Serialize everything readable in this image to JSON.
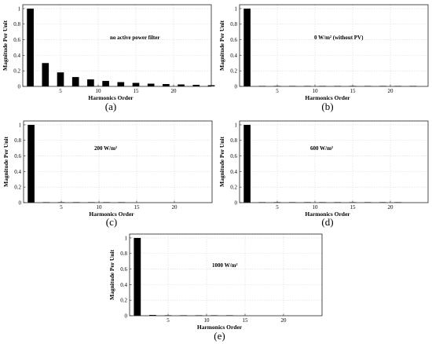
{
  "chart_data": [
    {
      "type": "bar",
      "panel_label": "(a)",
      "annotation": "no active power filter",
      "xlabel": "Harmonics Order",
      "ylabel": "Magnitude Per Unit",
      "xlim": [
        0,
        25
      ],
      "ylim": [
        0,
        1.05
      ],
      "xticks": [
        5,
        10,
        15,
        20
      ],
      "yticks": [
        0,
        0.2,
        0.4,
        0.6,
        0.8,
        1
      ],
      "x": [
        1,
        3,
        5,
        7,
        9,
        11,
        13,
        15,
        17,
        19,
        21,
        23,
        25
      ],
      "values": [
        1.0,
        0.3,
        0.18,
        0.12,
        0.09,
        0.07,
        0.055,
        0.045,
        0.035,
        0.03,
        0.025,
        0.02,
        0.015
      ]
    },
    {
      "type": "bar",
      "panel_label": "(b)",
      "annotation": "0 W/m² (without PV)",
      "xlabel": "Harmonics Order",
      "ylabel": "Magnitude Per Unit",
      "xlim": [
        0,
        25
      ],
      "ylim": [
        0,
        1.05
      ],
      "xticks": [
        5,
        10,
        15,
        20
      ],
      "yticks": [
        0,
        0.2,
        0.4,
        0.6,
        0.8,
        1
      ],
      "x": [
        1,
        3,
        5,
        7,
        9,
        11,
        13,
        15,
        17,
        19,
        21,
        23
      ],
      "values": [
        1.0,
        0.003,
        0.002,
        0.002,
        0.002,
        0.002,
        0.002,
        0.002,
        0.002,
        0.002,
        0.002,
        0.002
      ]
    },
    {
      "type": "bar",
      "panel_label": "(c)",
      "annotation": "200 W/m²",
      "xlabel": "Harmonics Order",
      "ylabel": "Magnitude Per Unit",
      "xlim": [
        0,
        25
      ],
      "ylim": [
        0,
        1.05
      ],
      "xticks": [
        5,
        10,
        15,
        20
      ],
      "yticks": [
        0,
        0.2,
        0.4,
        0.6,
        0.8,
        1
      ],
      "x": [
        1,
        3,
        5,
        7,
        9,
        11,
        13
      ],
      "values": [
        1.0,
        0.004,
        0.003,
        0.003,
        0.002,
        0.002,
        0.002
      ]
    },
    {
      "type": "bar",
      "panel_label": "(d)",
      "annotation": "600 W/m²",
      "xlabel": "Harmonics Order",
      "ylabel": "Magnitude Per Unit",
      "xlim": [
        0,
        25
      ],
      "ylim": [
        0,
        1.05
      ],
      "xticks": [
        5,
        10,
        15,
        20
      ],
      "yticks": [
        0,
        0.2,
        0.4,
        0.6,
        0.8,
        1
      ],
      "x": [
        1,
        3,
        5,
        7,
        9,
        11,
        13,
        15,
        17,
        19,
        21
      ],
      "values": [
        1.0,
        0.004,
        0.003,
        0.003,
        0.002,
        0.002,
        0.002,
        0.002,
        0.002,
        0.002,
        0.002
      ]
    },
    {
      "type": "bar",
      "panel_label": "(e)",
      "annotation": "1000 W/m²",
      "xlabel": "Harmonics Order",
      "ylabel": "Magnitude Per Unit",
      "xlim": [
        0,
        25
      ],
      "ylim": [
        0,
        1.05
      ],
      "xticks": [
        5,
        10,
        15,
        20
      ],
      "yticks": [
        0,
        0.2,
        0.4,
        0.6,
        0.8,
        1
      ],
      "x": [
        1,
        3,
        5,
        7,
        9,
        11,
        13
      ],
      "values": [
        1.0,
        0.01,
        0.005,
        0.004,
        0.003,
        0.003,
        0.002
      ]
    }
  ]
}
